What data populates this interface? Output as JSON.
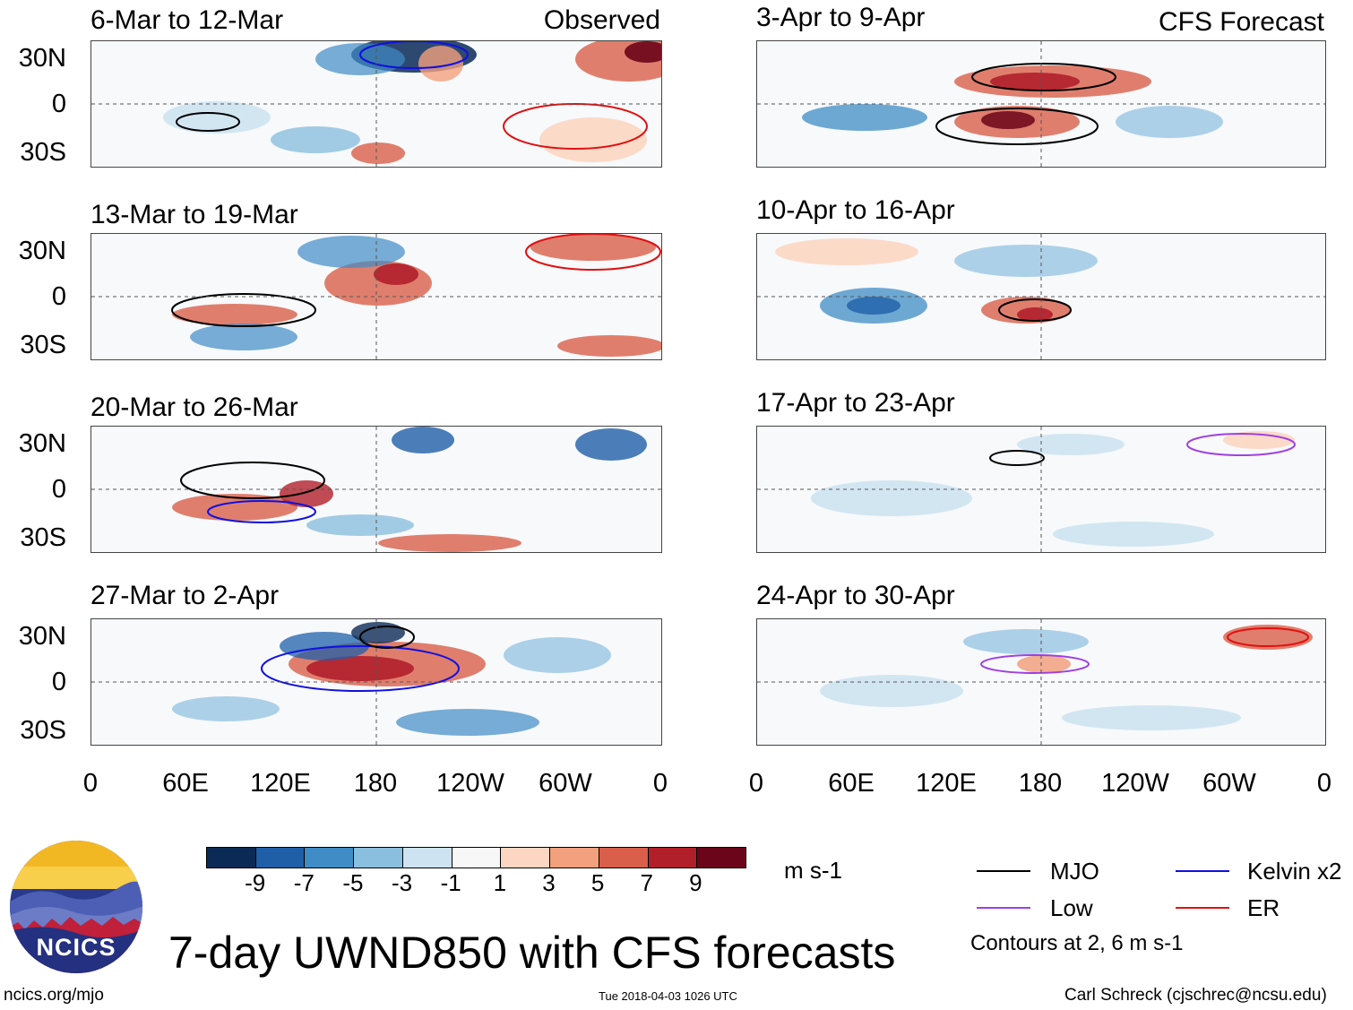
{
  "panels_left": [
    {
      "title": "6-Mar to 12-Mar",
      "tag": "Observed"
    },
    {
      "title": "13-Mar to 19-Mar",
      "tag": ""
    },
    {
      "title": "20-Mar to 26-Mar",
      "tag": ""
    },
    {
      "title": "27-Mar to 2-Apr",
      "tag": ""
    }
  ],
  "panels_right": [
    {
      "title": "3-Apr to 9-Apr",
      "tag": "CFS Forecast"
    },
    {
      "title": "10-Apr to 16-Apr",
      "tag": ""
    },
    {
      "title": "17-Apr to 23-Apr",
      "tag": ""
    },
    {
      "title": "24-Apr to 30-Apr",
      "tag": ""
    }
  ],
  "lat_labels": [
    "30N",
    "0",
    "30S"
  ],
  "lon_labels": [
    "0",
    "60E",
    "120E",
    "180",
    "120W",
    "60W",
    "0"
  ],
  "colorbar": {
    "colors": [
      "#0b2a56",
      "#1f5fa8",
      "#3f8cc6",
      "#8bbfdf",
      "#cde3f1",
      "#f7f7f7",
      "#fcd6c2",
      "#f2a07d",
      "#d95f4a",
      "#b11f2b",
      "#6b0519"
    ],
    "labels": [
      "-9",
      "-7",
      "-5",
      "-3",
      "-1",
      "1",
      "3",
      "5",
      "7",
      "9"
    ],
    "units": "m s-1"
  },
  "legend": {
    "items": [
      {
        "name": "MJO",
        "color": "#000000"
      },
      {
        "name": "Kelvin x2",
        "color": "#1010e0"
      },
      {
        "name": "Low",
        "color": "#a040e0"
      },
      {
        "name": "ER",
        "color": "#e01010"
      }
    ],
    "note": "Contours at 2, 6 m s-1"
  },
  "logo_text": "NCICS",
  "main_title": "7-day UWND850 with CFS forecasts",
  "footer": {
    "url": "ncics.org/mjo",
    "timestamp": "Tue 2018-04-03 1026 UTC",
    "author": "Carl Schreck (cjschrec@ncsu.edu)"
  }
}
